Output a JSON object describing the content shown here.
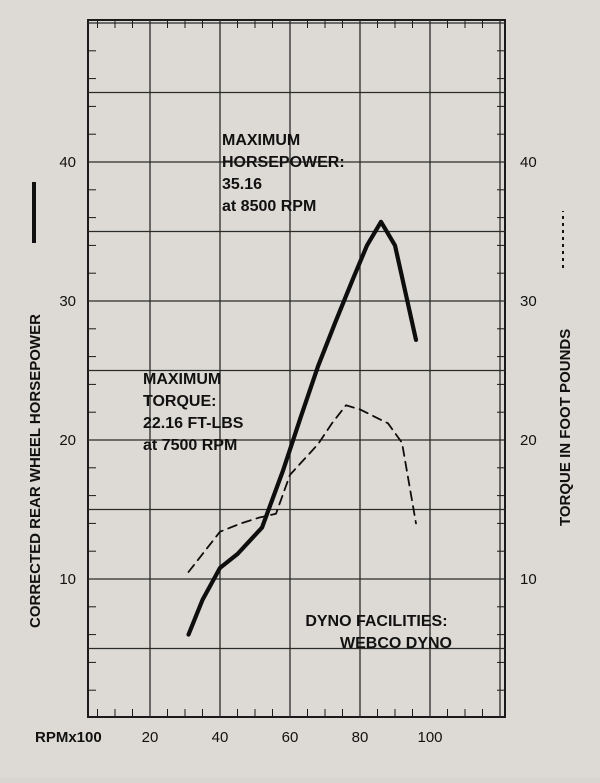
{
  "chart_data": {
    "type": "line",
    "xlabel": "RPMx100",
    "ylabel_left": "CORRECTED REAR WHEEL HORSEPOWER",
    "ylabel_right": "TORQUE IN FOOT POUNDS",
    "x_ticks": [
      20,
      40,
      60,
      80,
      100
    ],
    "y_ticks": [
      10,
      20,
      30,
      40
    ],
    "xlim": [
      0,
      120
    ],
    "ylim": [
      0,
      50
    ],
    "grid": true,
    "series": [
      {
        "style": "solid",
        "x": [
          31,
          35,
          40,
          45,
          52,
          58,
          63,
          68,
          73,
          78,
          82,
          86,
          90,
          96
        ],
        "y": [
          6.0,
          8.5,
          10.8,
          11.8,
          13.7,
          17.8,
          21.6,
          25.3,
          28.5,
          31.6,
          34.0,
          35.7,
          34.0,
          27.2
        ]
      },
      {
        "style": "dashed",
        "x": [
          31,
          40,
          46,
          51,
          56,
          60,
          64,
          68,
          72,
          76,
          80,
          84,
          88,
          92,
          96
        ],
        "y": [
          10.5,
          13.4,
          14.0,
          14.4,
          14.7,
          17.5,
          18.6,
          19.7,
          21.2,
          22.5,
          22.2,
          21.7,
          21.2,
          19.8,
          14.0
        ]
      }
    ],
    "annotations": [
      {
        "id": "hp",
        "lines": [
          "MAXIMUM",
          "HORSEPOWER:",
          "35.16",
          "at 8500 RPM"
        ]
      },
      {
        "id": "torque",
        "lines": [
          "MAXIMUM",
          "TORQUE:",
          "22.16 FT-LBS",
          "at 7500 RPM"
        ]
      },
      {
        "id": "dyno",
        "lines": [
          "DYNO FACILITIES:",
          "WEBCO DYNO"
        ]
      }
    ]
  }
}
